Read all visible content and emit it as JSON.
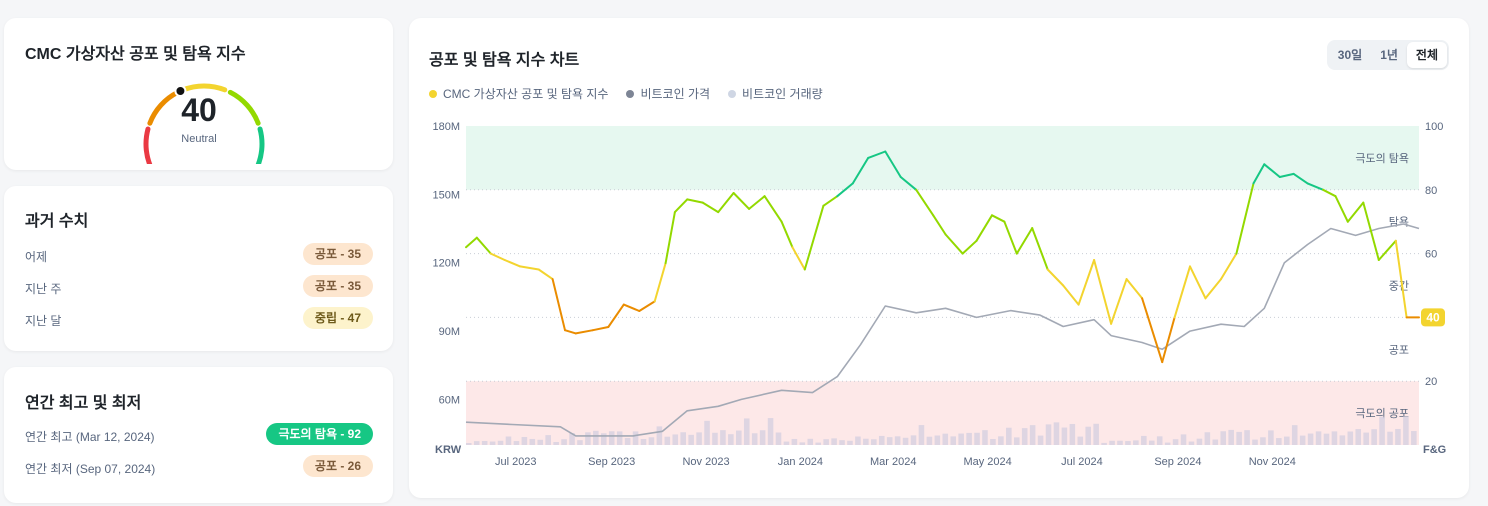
{
  "gauge": {
    "title": "CMC 가상자산 공포 및 탐욕 지수",
    "value": "40",
    "value_num": 40,
    "label": "Neutral",
    "segment_colors": [
      "#ea3943",
      "#ea8c00",
      "#f3d42f",
      "#93d900",
      "#16c784"
    ]
  },
  "historical": {
    "title": "과거 수치",
    "rows": [
      {
        "label": "어제",
        "badge": "공포 - 35",
        "tone": "fear"
      },
      {
        "label": "지난 주",
        "badge": "공포 - 35",
        "tone": "fear"
      },
      {
        "label": "지난 달",
        "badge": "중립 - 47",
        "tone": "neutral"
      }
    ]
  },
  "yearly": {
    "title": "연간 최고 및 최저",
    "rows": [
      {
        "label": "연간 최고 (Mar 12, 2024)",
        "badge": "극도의 탐욕 - 92",
        "tone": "greed"
      },
      {
        "label": "연간 최저 (Sep 07, 2024)",
        "badge": "공포 - 26",
        "tone": "fear"
      }
    ]
  },
  "chart_header": {
    "title": "공포 및 탐욕 지수 차트",
    "ranges": [
      "30일",
      "1년",
      "전체"
    ],
    "active_range": "전체",
    "legend": [
      {
        "label": "CMC 가상자산 공포 및 탐욕 지수",
        "color": "#f3d42f"
      },
      {
        "label": "비트코인 가격",
        "color": "#7d8595"
      },
      {
        "label": "비트코인 거래량",
        "color": "#cfd6e4"
      }
    ]
  },
  "chart_data": {
    "type": "line",
    "title": "공포 및 탐욕 지수 차트",
    "x_ticks": [
      "Jul 2023",
      "Sep 2023",
      "Nov 2023",
      "Jan 2024",
      "Mar 2024",
      "May 2024",
      "Jul 2024",
      "Sep 2024",
      "Nov 2024"
    ],
    "left_axis": {
      "unit_label": "KRW",
      "ticks": [
        "180M",
        "150M",
        "120M",
        "90M",
        "60M"
      ],
      "ylim": [
        40,
        180
      ]
    },
    "right_axis": {
      "unit_label": "F&G",
      "ticks": [
        "100",
        "80",
        "60",
        "40",
        "20"
      ],
      "ylim": [
        0,
        100
      ]
    },
    "zones": [
      {
        "label": "극도의 탐욕",
        "range": [
          80,
          100
        ],
        "color": "#e6f8f0"
      },
      {
        "label": "탐욕",
        "range": [
          60,
          80
        ]
      },
      {
        "label": "중간",
        "range": [
          40,
          60
        ]
      },
      {
        "label": "공포",
        "range": [
          20,
          40
        ]
      },
      {
        "label": "극도의 공포",
        "range": [
          0,
          20
        ],
        "color": "#fde8e8"
      }
    ],
    "current_value_label": "40",
    "current_value": 40,
    "series": [
      {
        "name": "CMC 가상자산 공포 및 탐욕 지수",
        "axis": "right",
        "x": [
          "2023-06-15",
          "2023-06-22",
          "2023-07-01",
          "2023-07-10",
          "2023-07-20",
          "2023-08-01",
          "2023-08-10",
          "2023-08-18",
          "2023-08-25",
          "2023-09-05",
          "2023-09-15",
          "2023-09-25",
          "2023-10-05",
          "2023-10-15",
          "2023-10-22",
          "2023-10-28",
          "2023-11-05",
          "2023-11-15",
          "2023-11-25",
          "2023-12-05",
          "2023-12-15",
          "2023-12-25",
          "2024-01-05",
          "2024-01-12",
          "2024-01-20",
          "2024-02-01",
          "2024-02-10",
          "2024-02-20",
          "2024-03-01",
          "2024-03-12",
          "2024-03-22",
          "2024-04-01",
          "2024-04-12",
          "2024-04-20",
          "2024-05-01",
          "2024-05-10",
          "2024-05-20",
          "2024-05-28",
          "2024-06-05",
          "2024-06-15",
          "2024-06-25",
          "2024-07-05",
          "2024-07-15",
          "2024-07-25",
          "2024-08-05",
          "2024-08-15",
          "2024-08-25",
          "2024-09-07",
          "2024-09-15",
          "2024-09-25",
          "2024-10-05",
          "2024-10-15",
          "2024-10-25",
          "2024-11-05",
          "2024-11-12",
          "2024-11-22",
          "2024-12-01",
          "2024-12-10",
          "2024-12-20",
          "2024-12-28",
          "2025-01-05",
          "2025-01-15",
          "2025-01-25",
          "2025-02-05",
          "2025-02-12",
          "2025-02-20"
        ],
        "values": [
          62,
          65,
          60,
          58,
          56,
          55,
          52,
          36,
          35,
          36,
          37,
          44,
          42,
          45,
          57,
          73,
          77,
          76,
          73,
          79,
          74,
          78,
          70,
          62,
          55,
          75,
          78,
          82,
          90,
          92,
          84,
          80,
          72,
          66,
          60,
          64,
          72,
          70,
          60,
          68,
          55,
          50,
          44,
          58,
          38,
          52,
          46,
          26,
          40,
          56,
          46,
          52,
          60,
          82,
          88,
          84,
          85,
          82,
          80,
          78,
          70,
          76,
          58,
          64,
          40,
          40
        ]
      },
      {
        "name": "비트코인 가격",
        "axis": "left",
        "x": [
          "2023-06-15",
          "2023-07-15",
          "2023-08-15",
          "2023-08-25",
          "2023-09-15",
          "2023-10-01",
          "2023-10-20",
          "2023-11-05",
          "2023-11-25",
          "2023-12-10",
          "2024-01-05",
          "2024-01-25",
          "2024-02-10",
          "2024-02-25",
          "2024-03-12",
          "2024-04-01",
          "2024-04-20",
          "2024-05-10",
          "2024-06-01",
          "2024-06-20",
          "2024-07-05",
          "2024-07-25",
          "2024-08-05",
          "2024-08-25",
          "2024-09-07",
          "2024-09-25",
          "2024-10-15",
          "2024-10-30",
          "2024-11-12",
          "2024-11-25",
          "2024-12-10",
          "2024-12-25",
          "2025-01-10",
          "2025-01-25",
          "2025-02-10",
          "2025-02-20"
        ],
        "values": [
          50,
          49,
          48,
          44,
          44,
          44,
          46,
          55,
          57,
          60,
          64,
          63,
          70,
          84,
          101,
          98,
          100,
          96,
          99,
          97,
          92,
          95,
          88,
          85,
          82,
          90,
          93,
          92,
          100,
          120,
          128,
          135,
          132,
          135,
          137,
          135
        ]
      },
      {
        "name": "비트코인 거래량",
        "axis": "left",
        "values": [
          3,
          4,
          3,
          5,
          4,
          6,
          5,
          7,
          4,
          6,
          8,
          5,
          6,
          9,
          7,
          12,
          10,
          15,
          12,
          9,
          8,
          11,
          10,
          8,
          14,
          12,
          10,
          9,
          13,
          11,
          16,
          14,
          12,
          18,
          15,
          20,
          17,
          14,
          19,
          16
        ]
      }
    ]
  }
}
